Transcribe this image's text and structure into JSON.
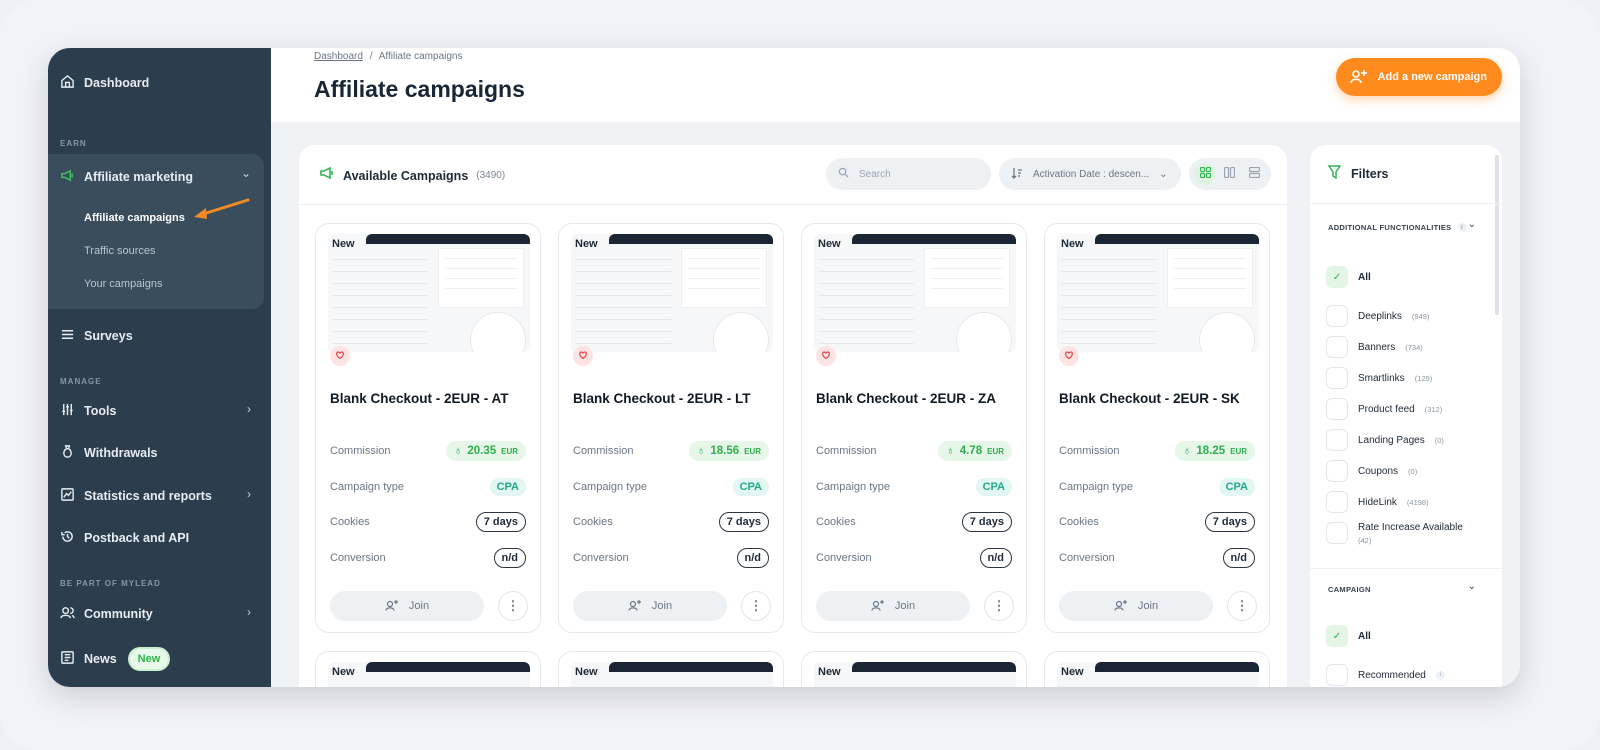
{
  "sidebar": {
    "dashboard": "Dashboard",
    "earn_label": "EARN",
    "affiliate_marketing": "Affiliate marketing",
    "sub": [
      "Affiliate campaigns",
      "Traffic sources",
      "Your campaigns"
    ],
    "surveys": "Surveys",
    "manage_label": "MANAGE",
    "tools": "Tools",
    "withdrawals": "Withdrawals",
    "statistics": "Statistics and reports",
    "postback": "Postback and API",
    "bepart_label": "BE PART OF MYLEAD",
    "community": "Community",
    "news": "News",
    "news_badge": "New"
  },
  "header": {
    "breadcrumb_home": "Dashboard",
    "breadcrumb_sep": "/",
    "breadcrumb_current": "Affiliate campaigns",
    "title": "Affiliate campaigns",
    "add_button": "Add a new campaign"
  },
  "campaigns": {
    "title": "Available Campaigns",
    "count": "(3490)",
    "search_placeholder": "Search",
    "sort_label": "Activation Date : descen...",
    "labels": {
      "commission": "Commission",
      "type": "Campaign type",
      "cookies": "Cookies",
      "conversion": "Conversion",
      "join": "Join",
      "new": "New",
      "more": "⋮"
    },
    "cards": [
      {
        "name": "Blank Checkout - 2EUR - AT",
        "commission": "20.35",
        "currency": "EUR",
        "type": "CPA",
        "cookies": "7 days",
        "conversion": "n/d"
      },
      {
        "name": "Blank Checkout - 2EUR - LT",
        "commission": "18.56",
        "currency": "EUR",
        "type": "CPA",
        "cookies": "7 days",
        "conversion": "n/d"
      },
      {
        "name": "Blank Checkout - 2EUR - ZA",
        "commission": "4.78",
        "currency": "EUR",
        "type": "CPA",
        "cookies": "7 days",
        "conversion": "n/d"
      },
      {
        "name": "Blank Checkout - 2EUR - SK",
        "commission": "18.25",
        "currency": "EUR",
        "type": "CPA",
        "cookies": "7 days",
        "conversion": "n/d"
      }
    ]
  },
  "filters": {
    "title": "Filters",
    "section1": "ADDITIONAL FUNCTIONALITIES",
    "section2": "CAMPAIGN",
    "items": [
      {
        "label": "All",
        "count": ""
      },
      {
        "label": "Deeplinks",
        "count": "(949)"
      },
      {
        "label": "Banners",
        "count": "(734)"
      },
      {
        "label": "Smartlinks",
        "count": "(129)"
      },
      {
        "label": "Product feed",
        "count": "(312)"
      },
      {
        "label": "Landing Pages",
        "count": "(0)"
      },
      {
        "label": "Coupons",
        "count": "(0)"
      },
      {
        "label": "HideLink",
        "count": "(4198)"
      },
      {
        "label": "Rate Increase Available",
        "count": "(42)"
      }
    ],
    "campaign_items": [
      {
        "label": "All"
      },
      {
        "label": "Recommended"
      }
    ]
  },
  "colors": {
    "sidebar": "#2c3e4e",
    "accent_orange": "#ff8a1e",
    "accent_green": "#35b454"
  }
}
